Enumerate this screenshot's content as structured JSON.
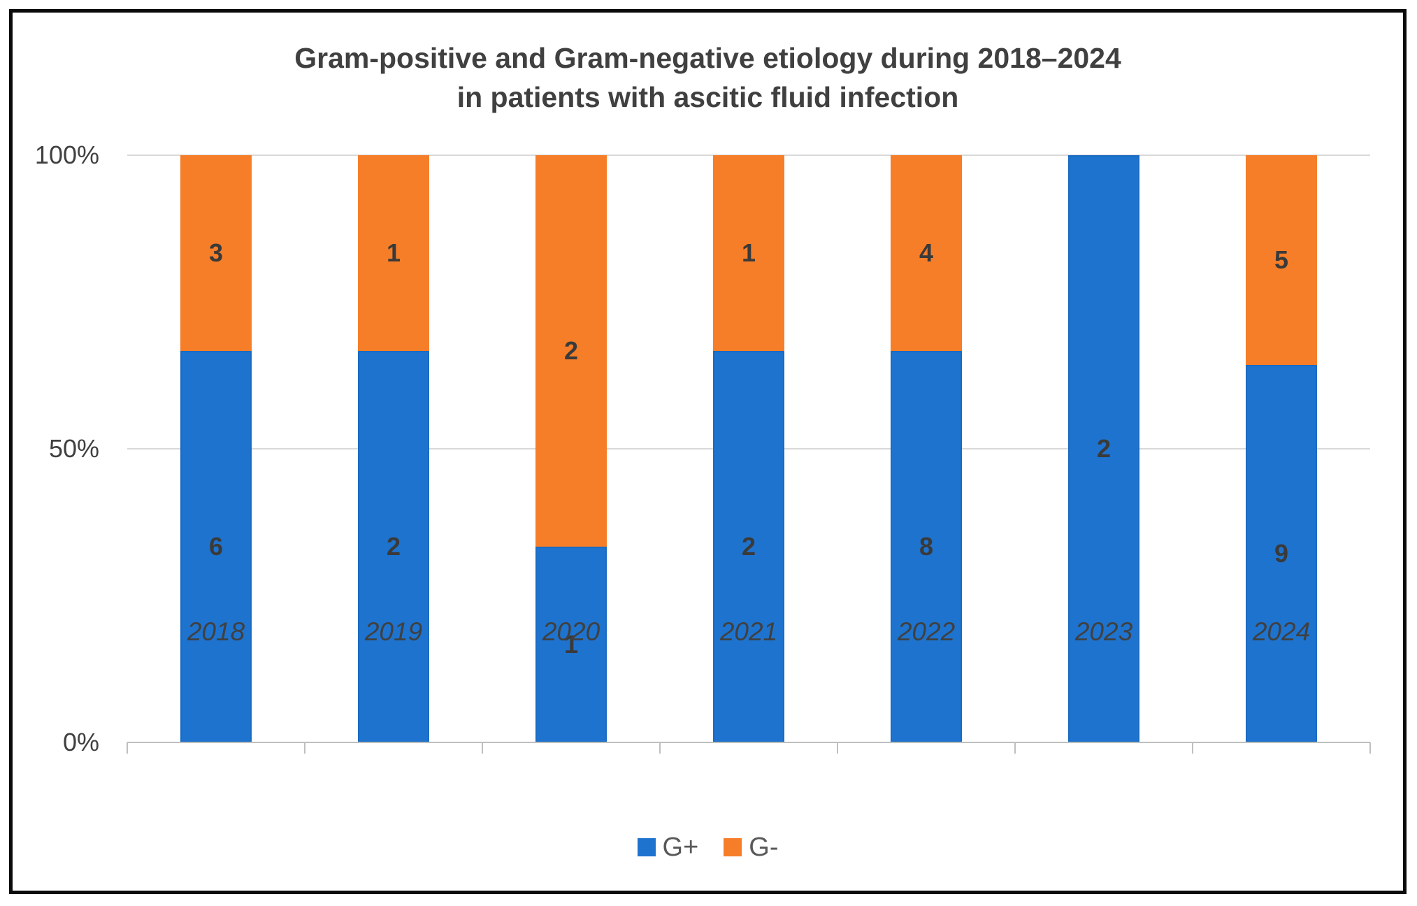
{
  "chart_data": {
    "type": "bar",
    "variant": "stacked-100-percent-column",
    "title_line1": "Gram-positive and Gram-negative etiology during 2018–2024",
    "title_line2": "in patients with ascitic fluid infection",
    "categories": [
      "2018",
      "2019",
      "2020",
      "2021",
      "2022",
      "2023",
      "2024"
    ],
    "series": [
      {
        "name": "G+",
        "color": "#1e73ce",
        "values": [
          6,
          2,
          1,
          2,
          8,
          2,
          9
        ]
      },
      {
        "name": "G-",
        "color": "#f67e28",
        "values": [
          3,
          1,
          2,
          1,
          4,
          0,
          5
        ]
      }
    ],
    "y_axis": {
      "ticks": [
        "100%",
        "50%",
        "0%"
      ],
      "min_percent": 0,
      "max_percent": 100
    },
    "x_axis": {
      "label_style": "italic"
    },
    "grid": true,
    "legend_position": "bottom",
    "colors": {
      "grid_line": "#d9d9d9",
      "axis_line": "#bfbfbf",
      "title_text": "#404040",
      "axis_text": "#404040",
      "data_label_text": "#3a3a3a",
      "legend_text": "#595959",
      "frame_border": "#0b0b0b",
      "background": "#ffffff"
    }
  }
}
